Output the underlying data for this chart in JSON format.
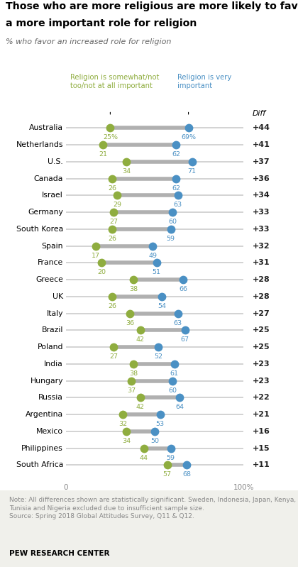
{
  "title_line1": "Those who are more religious are more likely to favor",
  "title_line2": "a more important role for religion",
  "subtitle": "% who favor an increased role for religion",
  "legend_green": "Religion is somewhat/not\ntoo/not at all important",
  "legend_blue": "Religion is very\nimportant",
  "countries": [
    "Australia",
    "Netherlands",
    "U.S.",
    "Canada",
    "Israel",
    "Germany",
    "South Korea",
    "Spain",
    "France",
    "Greece",
    "UK",
    "Italy",
    "Brazil",
    "Poland",
    "India",
    "Hungary",
    "Russia",
    "Argentina",
    "Mexico",
    "Philippines",
    "South Africa"
  ],
  "green_vals": [
    25,
    21,
    34,
    26,
    29,
    27,
    26,
    17,
    20,
    38,
    26,
    36,
    42,
    27,
    38,
    37,
    42,
    32,
    34,
    44,
    57
  ],
  "blue_vals": [
    69,
    62,
    71,
    62,
    63,
    60,
    59,
    49,
    51,
    66,
    54,
    63,
    67,
    52,
    61,
    60,
    64,
    53,
    50,
    59,
    68
  ],
  "diffs": [
    "+44",
    "+41",
    "+37",
    "+36",
    "+34",
    "+33",
    "+33",
    "+32",
    "+31",
    "+28",
    "+28",
    "+27",
    "+25",
    "+25",
    "+23",
    "+23",
    "+22",
    "+21",
    "+16",
    "+15",
    "+11"
  ],
  "green_color": "#8fad3f",
  "blue_color": "#4a90c4",
  "line_color": "#cccccc",
  "connector_color": "#b0b0b0",
  "background_color": "#ffffff",
  "note_bg": "#f0f0eb",
  "note_text": "Note: All differences shown are statistically significant. Sweden, Indonesia, Japan, Kenya,\nTunisia and Nigeria excluded due to insufficient sample size.\nSource: Spring 2018 Global Attitudes Survey, Q11 & Q12.",
  "source_text": "PEW RESEARCH CENTER"
}
